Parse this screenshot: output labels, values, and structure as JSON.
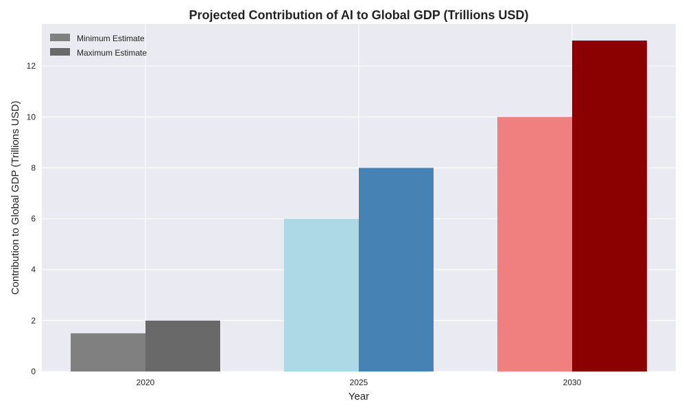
{
  "chart_data": {
    "type": "bar",
    "title": "Projected Contribution of AI to Global GDP (Trillions USD)",
    "xlabel": "Year",
    "ylabel": "Contribution to Global GDP (Trillions USD)",
    "categories": [
      "2020",
      "2025",
      "2030"
    ],
    "ylim": [
      0,
      13.65
    ],
    "yticks": [
      0,
      2,
      4,
      6,
      8,
      10,
      12
    ],
    "grid": true,
    "legend_position": "top-left",
    "series": [
      {
        "name": "Minimum Estimate",
        "values": [
          1.5,
          6,
          10
        ],
        "legend_color": "#808080",
        "colors": [
          "#808080",
          "#add8e6",
          "#f08080"
        ]
      },
      {
        "name": "Maximum Estimate",
        "values": [
          2,
          8,
          13
        ],
        "legend_color": "#696969",
        "colors": [
          "#696969",
          "#4682b4",
          "#8b0000"
        ]
      }
    ],
    "colors": {
      "plot_background": "#eaeaf2",
      "grid": "#ffffff",
      "text": "#222222"
    }
  }
}
